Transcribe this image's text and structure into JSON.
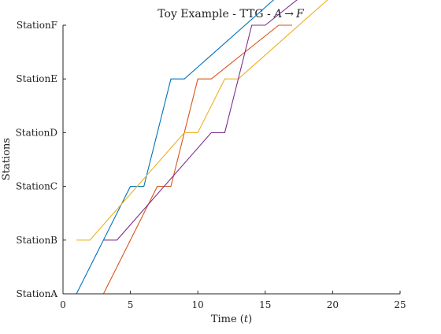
{
  "chart_data": {
    "type": "line",
    "title_prefix": "Toy Example - TTG - ",
    "title_math_from": "A",
    "title_arrow": "→",
    "title_math_to": "F",
    "xlabel_prefix": "Time (",
    "xlabel_math": "t",
    "xlabel_suffix": ")",
    "ylabel": "Stations",
    "xlim": [
      0,
      25
    ],
    "xticks": [
      0,
      5,
      10,
      15,
      20,
      25
    ],
    "y_categories": [
      "StationA",
      "StationB",
      "StationC",
      "StationD",
      "StationE",
      "StationF"
    ],
    "grid": false,
    "series": [
      {
        "color": "#0072BD",
        "points": [
          [
            0,
            0
          ],
          [
            1,
            0
          ],
          [
            5,
            2
          ],
          [
            6,
            2
          ],
          [
            8,
            4
          ],
          [
            9,
            4
          ],
          [
            18,
            6
          ],
          [
            19,
            6
          ]
        ]
      },
      {
        "color": "#D95319",
        "points": [
          [
            2,
            0
          ],
          [
            3,
            0
          ],
          [
            7,
            2
          ],
          [
            8,
            2
          ],
          [
            10,
            4
          ],
          [
            11,
            4
          ],
          [
            16,
            5
          ],
          [
            17,
            5
          ]
        ]
      },
      {
        "color": "#EDB120",
        "points": [
          [
            1,
            1
          ],
          [
            2,
            1
          ],
          [
            9,
            3
          ],
          [
            10,
            3
          ],
          [
            12,
            4
          ],
          [
            13,
            4
          ],
          [
            22,
            6
          ],
          [
            23,
            6
          ]
        ]
      },
      {
        "color": "#7E2F8E",
        "points": [
          [
            3,
            1
          ],
          [
            4,
            1
          ],
          [
            11,
            3
          ],
          [
            12,
            3
          ],
          [
            14,
            5
          ],
          [
            15,
            5
          ],
          [
            20,
            6
          ],
          [
            21,
            6
          ]
        ]
      }
    ]
  }
}
